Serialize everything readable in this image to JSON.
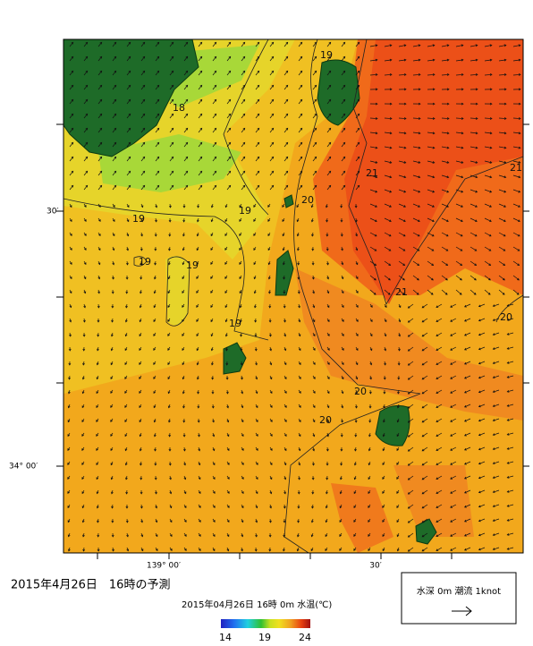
{
  "map": {
    "title": "2015年4月26日　16時の予測",
    "subtitle": "2015年04月26日 16時 0m 水温(℃)",
    "left_axis_labels": [
      "30′",
      "34° 00′"
    ],
    "bottom_axis_labels": [
      "139° 00′",
      "30′"
    ],
    "colorbar_labels": [
      "14",
      "19",
      "24"
    ],
    "legend": "水深 0m  潮流  1knot",
    "contour_labels": [
      "19",
      "18",
      "21",
      "21",
      "20",
      "19",
      "19",
      "19",
      "19",
      "21",
      "20",
      "19",
      "20",
      "20"
    ]
  }
}
